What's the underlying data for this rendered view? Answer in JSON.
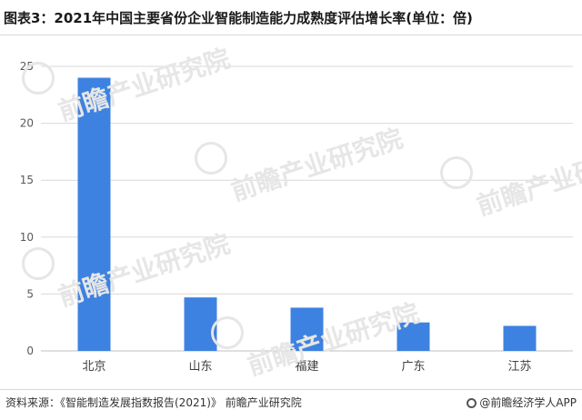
{
  "header": {
    "title": "图表3：2021年中国主要省份企业智能制造能力成熟度评估增长率(单位：倍)"
  },
  "footer": {
    "source": "资料来源：《智能制造发展指数报告(2021)》 前瞻产业研究院",
    "brand": "@前瞻经济学人APP"
  },
  "watermark": {
    "text": "前瞻产业研究院"
  },
  "colors": {
    "bar": "#3d82e0",
    "grid": "#d9d9d9",
    "axis": "#bfbfbf",
    "tick_text": "#595959"
  },
  "chart_data": {
    "type": "bar",
    "categories": [
      "北京",
      "山东",
      "福建",
      "广东",
      "江苏"
    ],
    "values": [
      24,
      4.7,
      3.8,
      2.5,
      2.2
    ],
    "title": "图表3：2021年中国主要省份企业智能制造能力成熟度评估增长率(单位：倍)",
    "xlabel": "",
    "ylabel": "",
    "ylim": [
      0,
      25
    ],
    "yticks": [
      0,
      5,
      10,
      15,
      20,
      25
    ],
    "grid": true,
    "legend": "none"
  }
}
